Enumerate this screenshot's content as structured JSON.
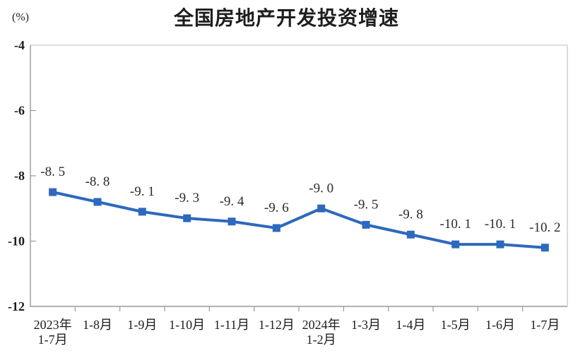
{
  "chart_data": {
    "type": "line",
    "title": "全国房地产开发投资增速",
    "unit_label": "(%)",
    "categories": [
      "2023年\n1-7月",
      "1-8月",
      "1-9月",
      "1-10月",
      "1-11月",
      "1-12月",
      "2024年\n1-2月",
      "1-3月",
      "1-4月",
      "1-5月",
      "1-6月",
      "1-7月"
    ],
    "values": [
      -8.5,
      -8.8,
      -9.1,
      -9.3,
      -9.4,
      -9.6,
      -9.0,
      -9.5,
      -9.8,
      -10.1,
      -10.1,
      -10.2
    ],
    "display_labels": [
      "-8. 5",
      "-8. 8",
      "-9. 1",
      "-9. 3",
      "-9. 4",
      "-9. 6",
      "-9. 0",
      "-9. 5",
      "-9. 8",
      "-10. 1",
      "-10. 1",
      "-10. 2"
    ],
    "y_ticks": [
      -4,
      -6,
      -8,
      -10,
      -12
    ],
    "ylim": [
      -12,
      -4
    ],
    "xlabel": "",
    "ylabel": "(%)",
    "line_color": "#2D69BE",
    "marker": "square",
    "grid": false,
    "legend": false
  }
}
